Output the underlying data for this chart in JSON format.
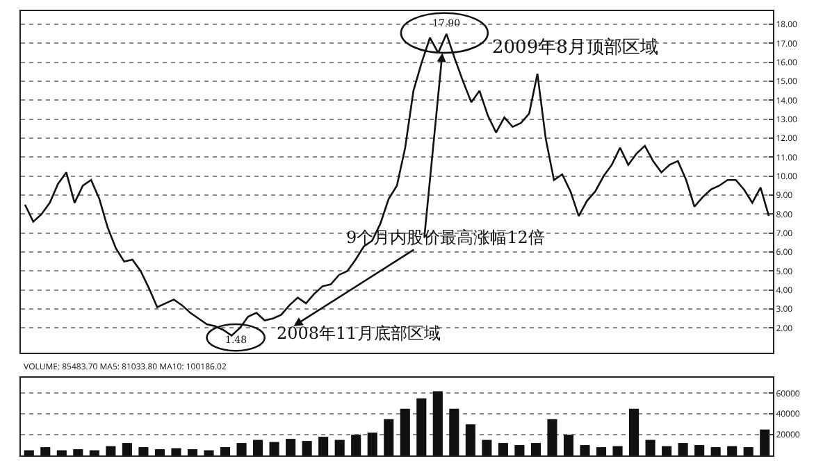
{
  "chart_data": [
    {
      "type": "line",
      "color": "#111111",
      "ylim": [
        0.7,
        18.7
      ],
      "yticks": [
        {
          "value": 2,
          "label": "2.00"
        },
        {
          "value": 3,
          "label": "3.00"
        },
        {
          "value": 4,
          "label": "4.00"
        },
        {
          "value": 5,
          "label": "5.00"
        },
        {
          "value": 6,
          "label": "6.00"
        },
        {
          "value": 7,
          "label": "7.00"
        },
        {
          "value": 8,
          "label": "8.00"
        },
        {
          "value": 9,
          "label": "9.00"
        },
        {
          "value": 10,
          "label": "10.00"
        },
        {
          "value": 11,
          "label": "11.00"
        },
        {
          "value": 12,
          "label": "12.00"
        },
        {
          "value": 13,
          "label": "13.00"
        },
        {
          "value": 14,
          "label": "14.00"
        },
        {
          "value": 15,
          "label": "15.00"
        },
        {
          "value": 16,
          "label": "16.00"
        },
        {
          "value": 17,
          "label": "17.00"
        },
        {
          "value": 18,
          "label": "18.00"
        }
      ],
      "grid": "y",
      "tick_labels": "y",
      "categories": [
        null,
        null,
        null,
        null,
        null,
        null,
        null,
        null,
        null,
        null,
        null,
        null,
        null,
        null,
        null,
        null,
        null,
        null,
        null,
        null,
        null,
        null,
        null,
        null,
        null,
        null,
        null,
        null,
        null,
        null,
        null,
        null,
        null,
        null,
        null,
        null,
        null,
        null,
        null,
        null,
        null,
        null,
        null,
        null,
        null,
        null,
        null,
        null,
        null,
        null,
        null,
        null,
        null,
        null,
        null,
        null,
        null,
        null,
        null,
        null,
        null,
        null,
        null,
        null,
        null,
        null,
        null,
        null,
        null,
        null,
        null,
        null,
        null,
        null,
        null,
        null,
        null,
        null,
        null,
        null,
        null,
        null,
        null,
        null,
        null,
        null,
        null,
        null,
        null,
        null,
        null
      ],
      "values": [
        8.5,
        7.6,
        8.0,
        8.6,
        9.6,
        10.2,
        8.6,
        9.5,
        9.8,
        8.8,
        7.3,
        6.2,
        5.5,
        5.6,
        5.0,
        4.1,
        3.1,
        3.3,
        3.5,
        3.2,
        2.8,
        2.5,
        2.2,
        2.1,
        1.9,
        1.6,
        2.0,
        2.6,
        2.8,
        2.4,
        2.5,
        2.7,
        3.2,
        3.6,
        3.3,
        3.8,
        4.2,
        4.3,
        4.8,
        5.0,
        5.6,
        6.3,
        6.6,
        7.5,
        8.8,
        9.5,
        11.5,
        14.5,
        16.0,
        17.3,
        16.5,
        17.5,
        16.2,
        15.0,
        13.9,
        14.5,
        13.2,
        12.3,
        13.1,
        12.6,
        12.8,
        13.3,
        15.4,
        12.0,
        9.8,
        10.1,
        9.2,
        7.9,
        8.7,
        9.2,
        10.0,
        10.6,
        11.5,
        10.6,
        11.2,
        11.6,
        10.8,
        10.2,
        10.6,
        10.8,
        9.8,
        8.4,
        8.9,
        9.3,
        9.5,
        9.8,
        9.8,
        9.3,
        8.6,
        9.4,
        7.9
      ],
      "annotations": [
        "2009年8月顶部区域",
        "9个月内股价最高涨幅12倍",
        "2008年11月底部区域",
        "17.90",
        "1.48"
      ]
    },
    {
      "type": "bar",
      "color": "#111111",
      "ylim": [
        0,
        75000
      ],
      "yticks": [
        20000,
        40000,
        60000
      ],
      "grid": "y",
      "tick_labels": "y",
      "categories": [
        null,
        null,
        null,
        null,
        null,
        null,
        null,
        null,
        null,
        null,
        null,
        null,
        null,
        null,
        null,
        null,
        null,
        null,
        null,
        null,
        null,
        null,
        null,
        null,
        null,
        null,
        null,
        null,
        null,
        null,
        null,
        null,
        null,
        null,
        null,
        null,
        null,
        null,
        null,
        null,
        null,
        null,
        null,
        null,
        null,
        null
      ],
      "values": [
        5000,
        8000,
        5000,
        6000,
        5000,
        9000,
        12000,
        8000,
        6000,
        7000,
        6000,
        5000,
        8000,
        12000,
        15000,
        13000,
        16000,
        14000,
        18000,
        15000,
        20000,
        22000,
        35000,
        45000,
        55000,
        62000,
        45000,
        30000,
        15000,
        12000,
        10000,
        12000,
        35000,
        20000,
        10000,
        8000,
        9000,
        45000,
        15000,
        9000,
        12000,
        10000,
        8000,
        9000,
        8000,
        25000
      ],
      "annotations": [
        "VOLUME: 85483.70 MA5: 81033.80 MA10: 100186.02"
      ]
    }
  ]
}
